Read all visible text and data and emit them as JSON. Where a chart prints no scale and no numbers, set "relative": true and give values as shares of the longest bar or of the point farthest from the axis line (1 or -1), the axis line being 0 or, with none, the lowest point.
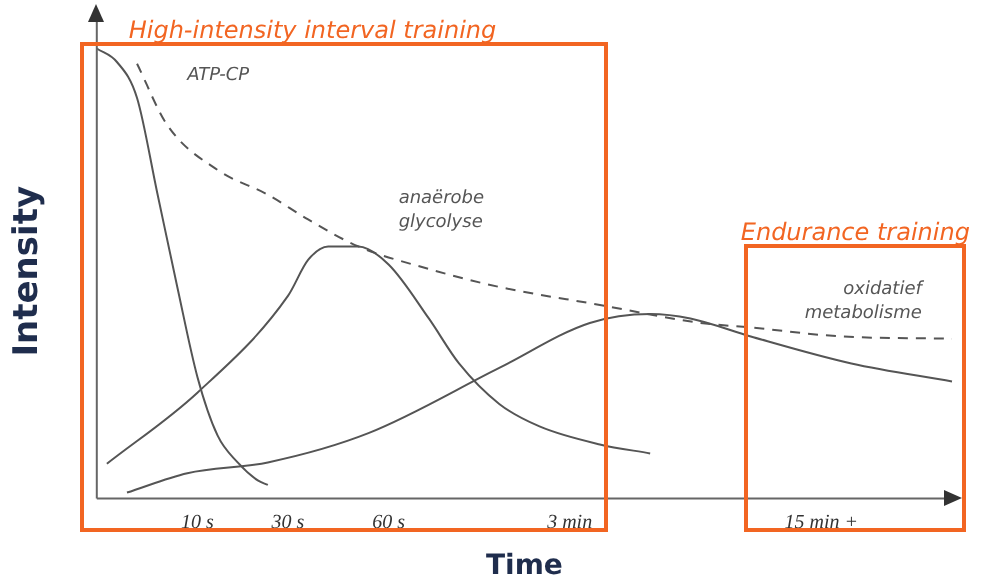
{
  "chart_data": {
    "type": "line",
    "relative": true,
    "xlabel": "Time",
    "ylabel": "Intensity",
    "marker": "none",
    "categories": [
      null,
      null,
      null,
      null,
      null,
      null,
      null,
      null,
      null,
      null,
      "10 s",
      null,
      null,
      null,
      null,
      null,
      null,
      null,
      null,
      "30 s",
      null,
      null,
      null,
      null,
      null,
      null,
      null,
      null,
      null,
      "60 s",
      null,
      null,
      null,
      null,
      null,
      null,
      null,
      null,
      null,
      null,
      null,
      null,
      null,
      null,
      null,
      null,
      null,
      "3 min",
      null,
      null,
      null,
      null,
      null,
      null,
      null,
      null,
      null,
      null,
      null,
      null,
      null,
      null,
      null,
      null,
      null,
      null,
      null,
      null,
      null,
      null,
      null,
      null,
      "15 min +",
      null,
      null,
      null,
      null,
      null,
      null,
      null,
      null,
      null,
      null,
      null,
      null,
      null
    ],
    "series": [
      {
        "name": "ATP-CP",
        "color": "#555555",
        "line_style": "solid",
        "values": [
          1,
          null,
          0.97,
          null,
          0.89,
          null,
          0.68,
          null,
          0.47,
          null,
          0.27,
          null,
          0.14,
          null,
          0.08,
          null,
          0.04,
          0.03,
          null,
          null,
          null,
          null,
          null,
          null,
          null,
          null,
          null,
          null,
          null,
          null,
          null,
          null,
          null,
          null,
          null,
          null,
          null,
          null,
          null,
          null,
          null,
          null,
          null,
          null,
          null,
          null,
          null,
          null,
          null,
          null,
          null,
          null,
          null,
          null,
          null,
          null,
          null,
          null,
          null,
          null,
          null,
          null,
          null,
          null,
          null,
          null,
          null,
          null,
          null,
          null,
          null,
          null,
          null,
          null,
          null,
          null,
          null,
          null,
          null,
          null,
          null,
          null,
          null,
          null,
          null,
          null
        ]
      },
      {
        "name": "anaërobe glycolyse",
        "color": "#555555",
        "line_style": "solid",
        "values": [
          null,
          0.077,
          null,
          null,
          null,
          null,
          null,
          null,
          null,
          null,
          0.235,
          null,
          null,
          null,
          null,
          null,
          null,
          null,
          null,
          0.45,
          null,
          0.53,
          null,
          0.56,
          null,
          null,
          0.56,
          null,
          null,
          0.52,
          null,
          null,
          null,
          0.4,
          null,
          null,
          0.3,
          null,
          null,
          null,
          0.21,
          null,
          null,
          null,
          0.16,
          null,
          null,
          null,
          null,
          null,
          0.12,
          null,
          null,
          null,
          null,
          0.1,
          null,
          null,
          null,
          null,
          null,
          null,
          null,
          null,
          null,
          null,
          null,
          null,
          null,
          null,
          null,
          null,
          null,
          null,
          null,
          null,
          null,
          null,
          null,
          null,
          null,
          null,
          null,
          null,
          null,
          null
        ]
      },
      {
        "name": "oxidatief metabolisme",
        "color": "#555555",
        "line_style": "solid",
        "values": [
          null,
          null,
          null,
          0.013,
          null,
          null,
          null,
          null,
          null,
          0.056,
          null,
          null,
          null,
          null,
          null,
          null,
          null,
          0.08,
          null,
          null,
          null,
          null,
          null,
          null,
          null,
          null,
          null,
          0.145,
          null,
          null,
          null,
          null,
          null,
          null,
          null,
          null,
          null,
          null,
          null,
          null,
          0.29,
          null,
          null,
          null,
          null,
          null,
          null,
          null,
          null,
          0.39,
          null,
          null,
          null,
          null,
          null,
          0.41,
          null,
          null,
          null,
          0.4,
          null,
          null,
          null,
          null,
          null,
          0.36,
          null,
          null,
          null,
          null,
          null,
          null,
          null,
          null,
          null,
          0.3,
          null,
          null,
          null,
          null,
          null,
          null,
          null,
          null,
          null,
          0.26
        ]
      },
      {
        "color": "#555555",
        "line_style": "dashed",
        "values": [
          null,
          null,
          null,
          null,
          0.966,
          null,
          null,
          0.83,
          null,
          null,
          null,
          null,
          0.73,
          null,
          null,
          null,
          null,
          0.675,
          null,
          null,
          null,
          0.62,
          null,
          null,
          null,
          null,
          0.56,
          null,
          null,
          null,
          null,
          null,
          null,
          0.51,
          null,
          null,
          null,
          null,
          null,
          null,
          0.47,
          null,
          null,
          null,
          null,
          null,
          null,
          null,
          null,
          null,
          0.43,
          null,
          null,
          null,
          null,
          null,
          null,
          null,
          null,
          null,
          0.39,
          null,
          null,
          null,
          null,
          0.38,
          null,
          null,
          null,
          null,
          null,
          null,
          null,
          null,
          0.36,
          null,
          null,
          null,
          null,
          null,
          null,
          null,
          null,
          null,
          null,
          0.355
        ]
      }
    ],
    "annotations": [
      "High-intensity interval training",
      "Endurance training"
    ]
  }
}
